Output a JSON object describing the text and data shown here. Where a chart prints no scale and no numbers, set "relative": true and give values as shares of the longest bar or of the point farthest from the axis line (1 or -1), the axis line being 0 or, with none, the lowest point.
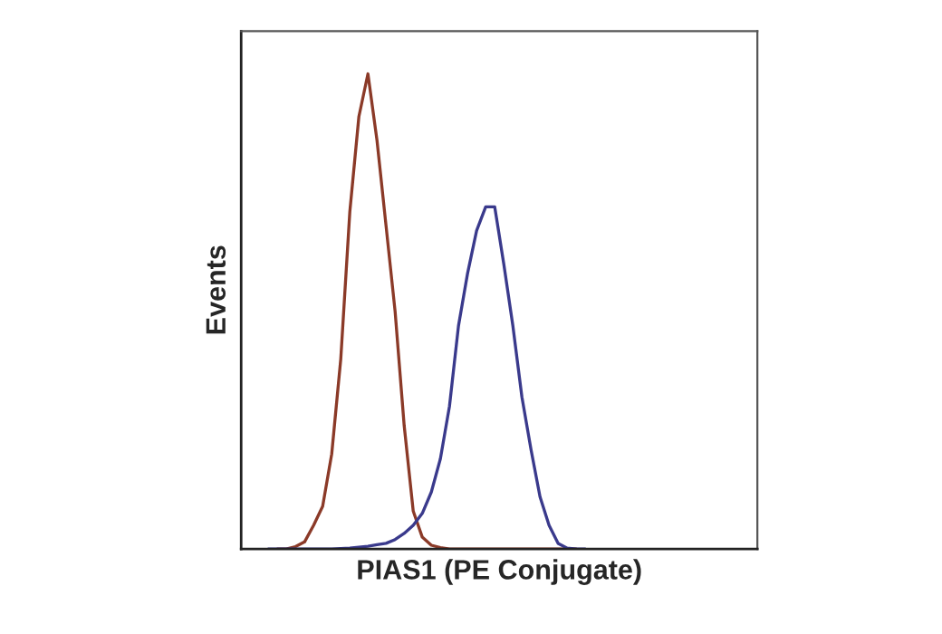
{
  "chart_data": {
    "type": "line",
    "relative": true,
    "tick_labels": false,
    "xlabel": "PIAS1 (PE Conjugate)",
    "ylabel": "Events",
    "categories": [
      null,
      null,
      null,
      null,
      null,
      null,
      null,
      null,
      null,
      null,
      null,
      null,
      null,
      null,
      null,
      null,
      null,
      null,
      null,
      null,
      null,
      null,
      null,
      null,
      null,
      null,
      null,
      null,
      null,
      null,
      null,
      null,
      null,
      null,
      null,
      null,
      null,
      null,
      null,
      null,
      null,
      null,
      null,
      null,
      null,
      null,
      null,
      null,
      null,
      null,
      null,
      null,
      null,
      null,
      null,
      null,
      null,
      null
    ],
    "series": [
      {
        "color": "#8b3a28",
        "values": [
          null,
          null,
          null,
          null,
          0,
          0,
          0.005,
          0.015,
          0.05,
          0.09,
          0.2,
          0.4,
          0.71,
          0.91,
          1.0,
          0.86,
          0.68,
          0.5,
          0.26,
          0.08,
          0.025,
          0.008,
          0.003,
          0,
          0,
          0,
          0,
          0,
          0,
          0,
          0,
          0,
          0,
          0,
          0,
          0,
          0,
          0,
          null,
          null,
          null,
          null,
          null,
          null,
          null,
          null,
          null,
          null,
          null,
          null,
          null,
          null,
          null,
          null,
          null,
          null,
          null,
          null
        ]
      },
      {
        "color": "#3a3a8c",
        "values": [
          null,
          null,
          null,
          0,
          0,
          0,
          0,
          0,
          0,
          0,
          0,
          0.001,
          0.002,
          0.004,
          0.006,
          0.009,
          0.012,
          0.02,
          0.033,
          0.05,
          0.075,
          0.12,
          0.19,
          0.3,
          0.47,
          0.58,
          0.67,
          0.72,
          0.72,
          0.6,
          0.47,
          0.32,
          0.21,
          0.11,
          0.05,
          0.012,
          0.002,
          0,
          0,
          null,
          null,
          null,
          null,
          null,
          null,
          null,
          null,
          null,
          null,
          null,
          null,
          null,
          null,
          null,
          null,
          null,
          null,
          null
        ]
      }
    ]
  }
}
